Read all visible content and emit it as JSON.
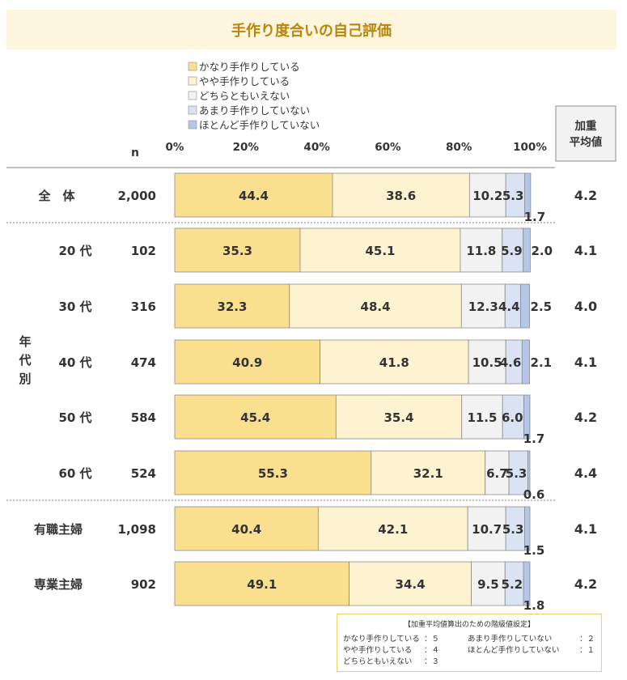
{
  "title": "手作り度合いの自己評価",
  "chart_data": {
    "type": "bar",
    "stacked": "percent",
    "orientation": "horizontal",
    "n_label": "n",
    "avg_header": [
      "加重",
      "平均値"
    ],
    "group_label": [
      "年",
      "代",
      "別"
    ],
    "x_ticks": [
      "0%",
      "20%",
      "40%",
      "60%",
      "80%",
      "100%"
    ],
    "xlim": [
      0,
      100
    ],
    "legend": [
      {
        "name": "かなり手作りしている",
        "color": "#fadf8e"
      },
      {
        "name": "やや手作りしている",
        "color": "#fdf3d1"
      },
      {
        "name": "どちらともいえない",
        "color": "#f2f2f2"
      },
      {
        "name": "あまり手作りしていない",
        "color": "#dae3f3"
      },
      {
        "name": "ほとんど手作りしていない",
        "color": "#b4c7e7"
      }
    ],
    "rows": [
      {
        "label": "全　体",
        "n": "2,000",
        "values": [
          44.4,
          38.6,
          10.2,
          5.3,
          1.7
        ],
        "avg": "4.2"
      },
      {
        "label": "20 代",
        "n": "102",
        "values": [
          35.3,
          45.1,
          11.8,
          5.9,
          2.0
        ],
        "avg": "4.1"
      },
      {
        "label": "30 代",
        "n": "316",
        "values": [
          32.3,
          48.4,
          12.3,
          4.4,
          2.5
        ],
        "avg": "4.0"
      },
      {
        "label": "40 代",
        "n": "474",
        "values": [
          40.9,
          41.8,
          10.5,
          4.6,
          2.1
        ],
        "avg": "4.1"
      },
      {
        "label": "50 代",
        "n": "584",
        "values": [
          45.4,
          35.4,
          11.5,
          6.0,
          1.7
        ],
        "avg": "4.2"
      },
      {
        "label": "60 代",
        "n": "524",
        "values": [
          55.3,
          32.1,
          6.7,
          5.3,
          0.6
        ],
        "avg": "4.4"
      },
      {
        "label": "有職主婦",
        "n": "1,098",
        "values": [
          40.4,
          42.1,
          10.7,
          5.3,
          1.5
        ],
        "avg": "4.1"
      },
      {
        "label": "専業主婦",
        "n": "902",
        "values": [
          49.1,
          34.4,
          9.5,
          5.2,
          1.8
        ],
        "avg": "4.2"
      }
    ]
  },
  "note": {
    "title": "【加重平均値算出のための階級値設定】",
    "rows": [
      [
        "かなり手作りしている",
        "：５",
        "あまり手作りしていない",
        "：２"
      ],
      [
        "やや手作りしている",
        "：４",
        "ほとんど手作りしていない",
        "：１"
      ],
      [
        "どちらともいえない",
        "：３",
        "",
        ""
      ]
    ]
  }
}
